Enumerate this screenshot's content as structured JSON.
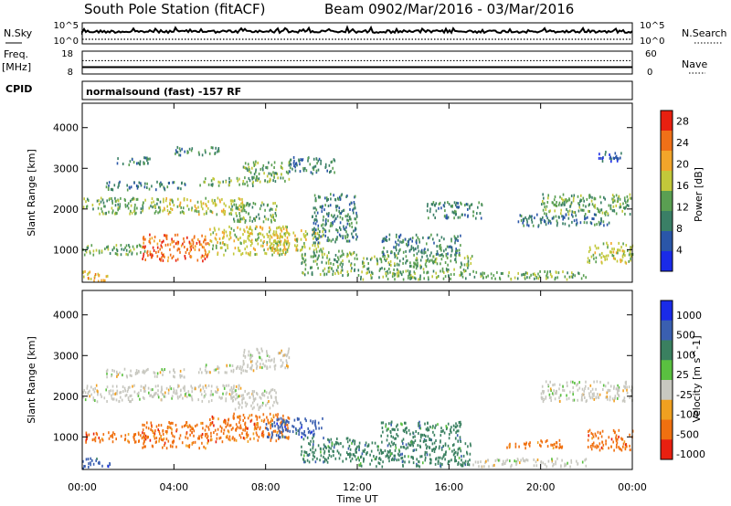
{
  "header": {
    "station": "South Pole Station (fitACF)",
    "beam": "Beam 09",
    "date_range": "02/Mar/2016 - 03/Mar/2016"
  },
  "nsky_panel": {
    "left_label": "N.Sky",
    "right_label": "N.Search",
    "y_ticks_left": [
      "10^5",
      "10^0"
    ],
    "y_ticks_right": [
      "10^5",
      "10^0"
    ]
  },
  "freq_panel": {
    "left_label_1": "Freq.",
    "left_label_2": "[MHz]",
    "right_label": "Nave",
    "y_ticks_left": [
      "18",
      "8"
    ],
    "y_ticks_right": [
      "60",
      "0"
    ],
    "freq_value_mhz": 11,
    "nave_value": 35
  },
  "cpid_panel": {
    "label": "CPID",
    "text": "normalsound (fast) -157 RF"
  },
  "chart_data": [
    {
      "type": "heatmap",
      "name": "power",
      "ylabel": "Slant Range [km]",
      "ylim": [
        200,
        4600
      ],
      "yticks": [
        1000,
        2000,
        3000,
        4000
      ],
      "xlim": [
        0,
        24
      ],
      "colorbar_label": "Power [dB]",
      "colorbar_ticks": [
        4,
        8,
        12,
        16,
        20,
        24,
        28
      ],
      "colorbar_range": [
        0,
        30
      ],
      "colors": [
        "#1a2be8",
        "#2a56a8",
        "#3a7f66",
        "#5a9f52",
        "#c2c83a",
        "#f2a52a",
        "#f07018",
        "#e82010"
      ],
      "regions": [
        {
          "t0": 0.0,
          "t1": 2.8,
          "r0": 900,
          "r1": 1150,
          "v": 14
        },
        {
          "t0": 0.0,
          "t1": 1.2,
          "r0": 250,
          "r1": 500,
          "v": 22
        },
        {
          "t0": 0.0,
          "t1": 3.5,
          "r0": 1900,
          "r1": 2300,
          "v": 12
        },
        {
          "t0": 1.0,
          "t1": 4.5,
          "r0": 2500,
          "r1": 2700,
          "v": 11
        },
        {
          "t0": 1.5,
          "t1": 3.0,
          "r0": 3100,
          "r1": 3300,
          "v": 8
        },
        {
          "t0": 2.6,
          "t1": 5.5,
          "r0": 750,
          "r1": 1400,
          "v": 26
        },
        {
          "t0": 3.5,
          "t1": 7.0,
          "r0": 1900,
          "r1": 2300,
          "v": 15
        },
        {
          "t0": 4.0,
          "t1": 6.0,
          "r0": 3350,
          "r1": 3550,
          "v": 8
        },
        {
          "t0": 5.0,
          "t1": 7.5,
          "r0": 2600,
          "r1": 2800,
          "v": 13
        },
        {
          "t0": 5.5,
          "t1": 9.0,
          "r0": 900,
          "r1": 1600,
          "v": 18
        },
        {
          "t0": 6.5,
          "t1": 8.5,
          "r0": 1700,
          "r1": 2200,
          "v": 14
        },
        {
          "t0": 7.0,
          "t1": 9.0,
          "r0": 2700,
          "r1": 3200,
          "v": 12
        },
        {
          "t0": 8.0,
          "t1": 10.5,
          "r0": 1000,
          "r1": 1500,
          "v": 16
        },
        {
          "t0": 9.0,
          "t1": 11.0,
          "r0": 2900,
          "r1": 3300,
          "v": 9
        },
        {
          "t0": 9.5,
          "t1": 12.0,
          "r0": 400,
          "r1": 1000,
          "v": 12
        },
        {
          "t0": 10.0,
          "t1": 12.0,
          "r0": 1200,
          "r1": 2400,
          "v": 10
        },
        {
          "t0": 12.0,
          "t1": 17.0,
          "r0": 300,
          "r1": 900,
          "v": 12
        },
        {
          "t0": 13.0,
          "t1": 16.5,
          "r0": 900,
          "r1": 1400,
          "v": 11
        },
        {
          "t0": 15.0,
          "t1": 17.5,
          "r0": 1800,
          "r1": 2200,
          "v": 8
        },
        {
          "t0": 17.0,
          "t1": 22.0,
          "r0": 300,
          "r1": 500,
          "v": 12
        },
        {
          "t0": 19.0,
          "t1": 23.0,
          "r0": 1600,
          "r1": 1900,
          "v": 8
        },
        {
          "t0": 20.0,
          "t1": 24.0,
          "r0": 1900,
          "r1": 2400,
          "v": 14
        },
        {
          "t0": 22.0,
          "t1": 24.0,
          "r0": 700,
          "r1": 1200,
          "v": 18
        },
        {
          "t0": 22.5,
          "t1": 23.5,
          "r0": 3200,
          "r1": 3500,
          "v": 6
        }
      ]
    },
    {
      "type": "heatmap",
      "name": "velocity",
      "ylabel": "Slant Range [km]",
      "ylim": [
        200,
        4600
      ],
      "yticks": [
        1000,
        2000,
        3000,
        4000
      ],
      "xlim": [
        0,
        24
      ],
      "colorbar_label": "Velocity [m s^-1]",
      "colorbar_ticks": [
        "1000",
        "500",
        "100",
        "25",
        "-25",
        "-100",
        "-500",
        "-1000"
      ],
      "colors": [
        "#1a2be8",
        "#3a5fb0",
        "#3a8060",
        "#5ac040",
        "#c8c8c0",
        "#f0a020",
        "#f07010",
        "#e82010"
      ],
      "regions": [
        {
          "t0": 0.0,
          "t1": 2.8,
          "r0": 900,
          "r1": 1150,
          "v": -200
        },
        {
          "t0": 0.0,
          "t1": 1.2,
          "r0": 250,
          "r1": 500,
          "v": 300
        },
        {
          "t0": 0.0,
          "t1": 3.5,
          "r0": 1900,
          "r1": 2300,
          "v": 0
        },
        {
          "t0": 1.0,
          "t1": 4.5,
          "r0": 2500,
          "r1": 2700,
          "v": 0
        },
        {
          "t0": 2.6,
          "t1": 5.5,
          "r0": 750,
          "r1": 1400,
          "v": -300
        },
        {
          "t0": 3.5,
          "t1": 7.0,
          "r0": 1900,
          "r1": 2300,
          "v": 0
        },
        {
          "t0": 5.0,
          "t1": 7.5,
          "r0": 2600,
          "r1": 2800,
          "v": 0
        },
        {
          "t0": 5.5,
          "t1": 9.0,
          "r0": 900,
          "r1": 1600,
          "v": -150
        },
        {
          "t0": 6.5,
          "t1": 8.5,
          "r0": 1700,
          "r1": 2200,
          "v": 0
        },
        {
          "t0": 7.0,
          "t1": 9.0,
          "r0": 2700,
          "r1": 3200,
          "v": 0
        },
        {
          "t0": 8.0,
          "t1": 10.5,
          "r0": 1000,
          "r1": 1500,
          "v": 300
        },
        {
          "t0": 9.5,
          "t1": 12.0,
          "r0": 400,
          "r1": 1000,
          "v": 200
        },
        {
          "t0": 12.0,
          "t1": 17.0,
          "r0": 300,
          "r1": 900,
          "v": 150
        },
        {
          "t0": 13.0,
          "t1": 16.5,
          "r0": 900,
          "r1": 1400,
          "v": 120
        },
        {
          "t0": 17.0,
          "t1": 22.0,
          "r0": 300,
          "r1": 500,
          "v": 0
        },
        {
          "t0": 18.5,
          "t1": 21.0,
          "r0": 750,
          "r1": 950,
          "v": -300
        },
        {
          "t0": 20.0,
          "t1": 24.0,
          "r0": 1900,
          "r1": 2400,
          "v": 0
        },
        {
          "t0": 22.0,
          "t1": 24.0,
          "r0": 700,
          "r1": 1200,
          "v": -300
        }
      ]
    }
  ],
  "time_axis": {
    "label": "Time UT",
    "ticks": [
      "00:00",
      "04:00",
      "08:00",
      "12:00",
      "16:00",
      "20:00",
      "00:00"
    ]
  }
}
